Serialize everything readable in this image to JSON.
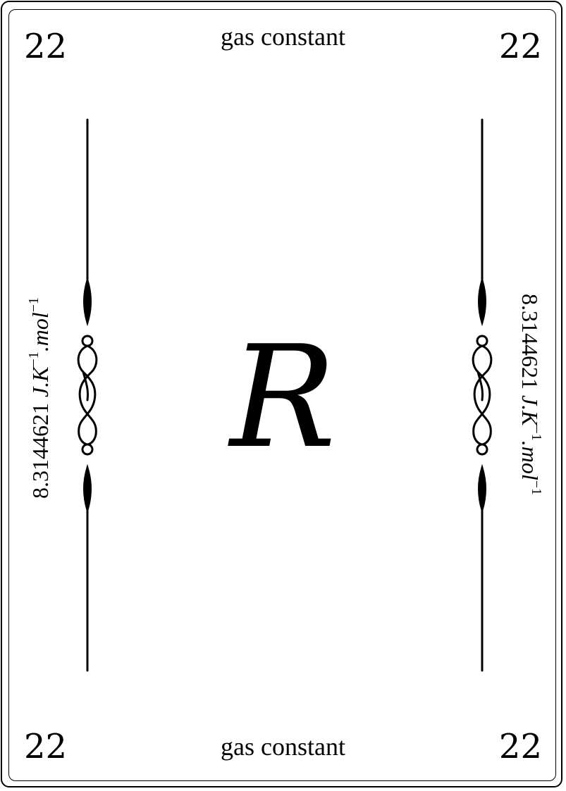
{
  "card": {
    "number": "22",
    "name": "gas constant",
    "symbol": "R",
    "value": {
      "number": "8.3144621",
      "unit_j": "J.K",
      "exp1": "−1",
      "unit_mol": ".mol",
      "exp2": "−1"
    }
  },
  "colors": {
    "ink": "#000000",
    "background": "#ffffff"
  }
}
